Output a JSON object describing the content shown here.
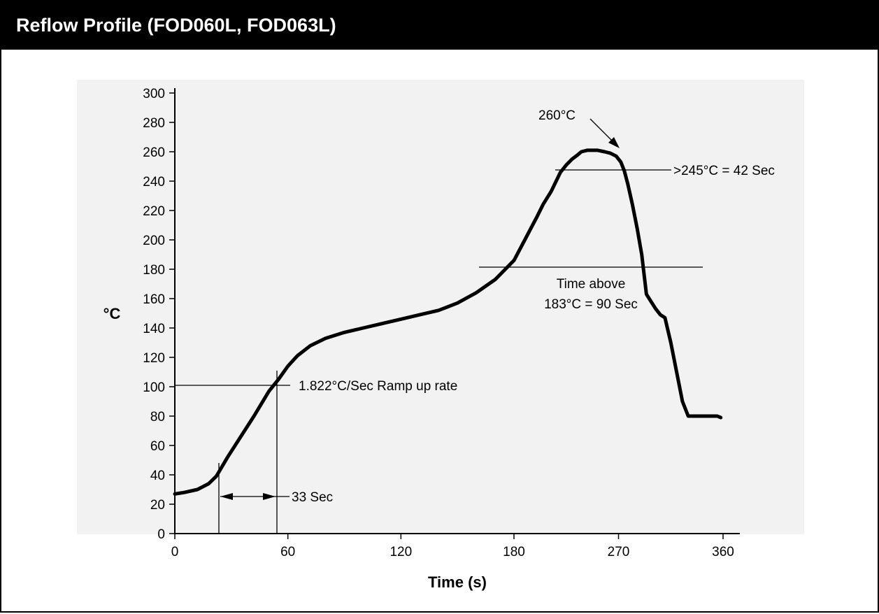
{
  "title": "Reflow Profile (FOD060L, FOD063L)",
  "chart_data": {
    "type": "line",
    "xlabel": "Time (s)",
    "ylabel": "°C",
    "xlim": [
      0,
      360
    ],
    "ylim": [
      0,
      300
    ],
    "x_ticks": [
      0,
      60,
      120,
      180,
      270,
      360
    ],
    "y_ticks": [
      0,
      20,
      40,
      60,
      80,
      100,
      120,
      140,
      160,
      180,
      200,
      220,
      240,
      260,
      280,
      300
    ],
    "grid": false,
    "series": [
      {
        "x": [
          0,
          5,
          12,
          18,
          22,
          28,
          35,
          42,
          50,
          55,
          60,
          65,
          72,
          80,
          90,
          100,
          110,
          120,
          130,
          140,
          150,
          160,
          170,
          180,
          190,
          200,
          205,
          212,
          220,
          225,
          230,
          235,
          238,
          243,
          252,
          258,
          263,
          268,
          272,
          275,
          278,
          282,
          286,
          290,
          294,
          298,
          302,
          306,
          310,
          315,
          320,
          325,
          330,
          335,
          340,
          345,
          350,
          355,
          358
        ],
        "y": [
          27,
          28,
          30,
          34,
          39,
          52,
          66,
          80,
          97,
          105,
          114,
          121,
          128,
          133,
          137,
          140,
          143,
          146,
          149,
          152,
          157,
          164,
          173,
          186,
          201,
          216,
          224,
          233,
          246,
          251,
          255,
          258,
          260,
          261,
          261,
          260,
          259,
          257,
          253,
          247,
          238,
          224,
          208,
          190,
          163,
          158,
          153,
          149,
          147,
          130,
          110,
          90,
          80,
          80,
          80,
          80,
          80,
          80,
          79
        ]
      }
    ],
    "annotations": [
      {
        "text": "260°C",
        "x": 250,
        "y": 285
      },
      {
        "text": ">245°C = 42 Sec"
      },
      {
        "text": "Time above"
      },
      {
        "text": "183°C = 90 Sec"
      },
      {
        "text": "1.822°C/Sec Ramp up rate"
      },
      {
        "text": "33 Sec"
      }
    ]
  }
}
